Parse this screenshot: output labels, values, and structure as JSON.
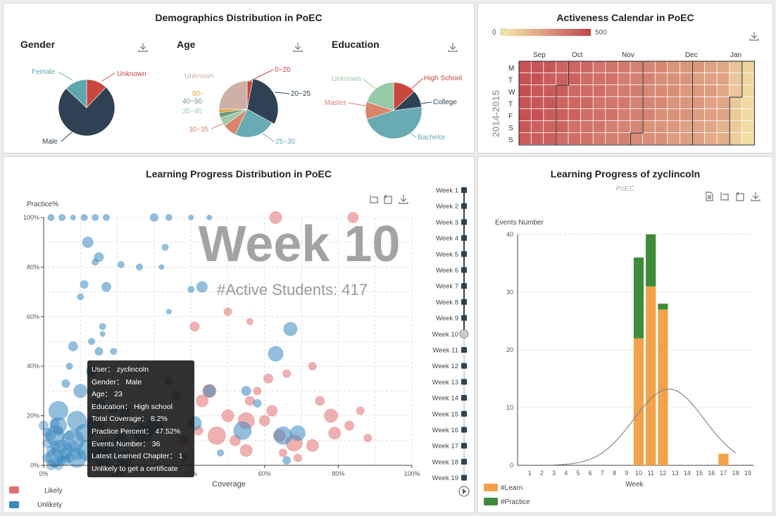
{
  "demographics": {
    "title": "Demographics Distribution in PoEC",
    "gender": {
      "title": "Gender",
      "labels": [
        "Female",
        "Unknown",
        "Male"
      ]
    },
    "age": {
      "title": "Age",
      "labels": [
        "Unknown",
        "0~20",
        "20~25",
        "50~",
        "40~50",
        "35~40",
        "30~35",
        "25~30"
      ]
    },
    "education": {
      "title": "Education",
      "labels": [
        "Unknown",
        "High School",
        "College",
        "Master",
        "Bachelor"
      ]
    }
  },
  "calendar": {
    "title": "Activeness Calendar in PoEC",
    "scale_min": "0",
    "scale_max": "500",
    "months": [
      "Sep",
      "Oct",
      "Nov",
      "Dec",
      "Jan"
    ],
    "days": [
      "M",
      "T",
      "W",
      "T",
      "F",
      "S",
      "S"
    ],
    "year_label": "2014-2015"
  },
  "progress": {
    "title": "Learning Progress Distribution in PoEC",
    "big_label": "Week 10",
    "active_label": "#Active Students: 417",
    "legend": [
      "Likely",
      "Unlikely"
    ],
    "weeks": [
      "Week 1",
      "Week 2",
      "Week 3",
      "Week 4",
      "Week 5",
      "Week 6",
      "Week 7",
      "Week 8",
      "Week 9",
      "Week 10",
      "Week 11",
      "Week 12",
      "Week 13",
      "Week 14",
      "Week 15",
      "Week 16",
      "Week 17",
      "Week 18",
      "Week 19"
    ],
    "tooltip": [
      "User： zyclincoln",
      "Gender： Male",
      "Age： 23",
      "Education： High school",
      "Total Coverage： 8.2%",
      "Practice Percent： 47.52%",
      "Events Number： 36",
      "Latest Learned Chapter： 1",
      "Unlikely to get a certificate"
    ]
  },
  "user": {
    "title": "Learning Progress of zyclincoln",
    "subtitle": "PoEC"
  },
  "chart_data": [
    {
      "type": "pie",
      "title": "Gender",
      "slices": [
        {
          "label": "Unknown",
          "value": 12,
          "color": "#c9473e"
        },
        {
          "label": "Male",
          "value": 75,
          "color": "#2e4253"
        },
        {
          "label": "Female",
          "value": 13,
          "color": "#5ea6ae"
        }
      ]
    },
    {
      "type": "pie",
      "title": "Age",
      "slices": [
        {
          "label": "0~20",
          "value": 3,
          "color": "#c9473e"
        },
        {
          "label": "20~25",
          "value": 30,
          "color": "#2e4253"
        },
        {
          "label": "25~30",
          "value": 24,
          "color": "#6aaab2"
        },
        {
          "label": "30~35",
          "value": 8,
          "color": "#d8866a"
        },
        {
          "label": "35~40",
          "value": 5,
          "color": "#9ccaa8"
        },
        {
          "label": "40~50",
          "value": 3,
          "color": "#6e9a7a"
        },
        {
          "label": "50~",
          "value": 2,
          "color": "#e0a53a"
        },
        {
          "label": "Unknown",
          "value": 25,
          "color": "#cdb1a6"
        }
      ]
    },
    {
      "type": "pie",
      "title": "Education",
      "slices": [
        {
          "label": "High School",
          "value": 13,
          "color": "#c9473e"
        },
        {
          "label": "College",
          "value": 10,
          "color": "#2e4253"
        },
        {
          "label": "Bachelor",
          "value": 47,
          "color": "#6aaab2"
        },
        {
          "label": "Master",
          "value": 10,
          "color": "#d8866a"
        },
        {
          "label": "Unknown",
          "value": 20,
          "color": "#96c9a6"
        }
      ]
    },
    {
      "type": "scatter",
      "title": "Learning Progress Distribution in PoEC",
      "xlabel": "Coverage",
      "ylabel": "Practice%",
      "xlim": [
        0,
        100
      ],
      "ylim": [
        0,
        100
      ],
      "xticks": [
        "0%",
        "20%",
        "40%",
        "60%",
        "80%",
        "100%"
      ],
      "yticks": [
        "0%",
        "20%",
        "40%",
        "60%",
        "80%",
        "100%"
      ],
      "series": [
        {
          "name": "Likely",
          "color": "#e07070",
          "points": [
            [
              63,
              100,
              9
            ],
            [
              84,
              100,
              8
            ],
            [
              50,
              62,
              6
            ],
            [
              56,
              58,
              5
            ],
            [
              41,
              56,
              7
            ],
            [
              50,
              20,
              9
            ],
            [
              55,
              18,
              12
            ],
            [
              62,
              22,
              8
            ],
            [
              45,
              30,
              10
            ],
            [
              43,
              26,
              9
            ],
            [
              56,
              26,
              7
            ],
            [
              64,
              12,
              9
            ],
            [
              68,
              9,
              12
            ],
            [
              79,
              13,
              9
            ],
            [
              83,
              16,
              7
            ],
            [
              78,
              20,
              10
            ],
            [
              73,
              8,
              9
            ],
            [
              60,
              18,
              8
            ],
            [
              65,
              5,
              6
            ],
            [
              55,
              6,
              9
            ],
            [
              47,
              12,
              13
            ],
            [
              52,
              10,
              8
            ],
            [
              69,
              3,
              6
            ],
            [
              75,
              26,
              7
            ],
            [
              86,
              22,
              6
            ],
            [
              88,
              11,
              6
            ],
            [
              38,
              10,
              8
            ],
            [
              42,
              14,
              7
            ],
            [
              58,
              30,
              6
            ],
            [
              61,
              35,
              7
            ],
            [
              66,
              37,
              6
            ],
            [
              73,
              40,
              6
            ]
          ]
        },
        {
          "name": "Unlikely",
          "color": "#3a89c0",
          "points": [
            [
              2,
              100,
              5
            ],
            [
              5,
              100,
              5
            ],
            [
              8,
              100,
              4
            ],
            [
              11,
              100,
              5
            ],
            [
              14,
              100,
              5
            ],
            [
              17,
              100,
              5
            ],
            [
              30,
              100,
              6
            ],
            [
              34,
              100,
              5
            ],
            [
              40,
              100,
              4
            ],
            [
              45,
              100,
              4
            ],
            [
              12,
              90,
              8
            ],
            [
              15,
              84,
              7
            ],
            [
              14,
              82,
              5
            ],
            [
              21,
              81,
              5
            ],
            [
              11,
              73,
              6
            ],
            [
              17,
              72,
              7
            ],
            [
              10,
              68,
              5
            ],
            [
              26,
              80,
              5
            ],
            [
              32,
              80,
              4
            ],
            [
              33,
              88,
              5
            ],
            [
              43,
              72,
              8
            ],
            [
              40,
              71,
              5
            ],
            [
              34,
              62,
              4
            ],
            [
              16,
              56,
              5
            ],
            [
              16,
              53,
              4
            ],
            [
              13,
              50,
              5
            ],
            [
              8,
              48,
              7
            ],
            [
              15,
              46,
              6
            ],
            [
              19,
              46,
              5
            ],
            [
              67,
              55,
              10
            ],
            [
              63,
              45,
              11
            ],
            [
              55,
              30,
              7
            ],
            [
              45,
              30,
              9
            ],
            [
              36,
              28,
              7
            ],
            [
              34,
              34,
              6
            ],
            [
              58,
              25,
              6
            ],
            [
              30,
              16,
              12
            ],
            [
              27,
              13,
              14
            ],
            [
              21,
              10,
              10
            ],
            [
              19,
              23,
              8
            ],
            [
              15,
              24,
              9
            ],
            [
              10,
              30,
              10
            ],
            [
              6,
              33,
              6
            ],
            [
              7,
              40,
              5
            ],
            [
              13,
              38,
              8
            ],
            [
              4,
              22,
              14
            ],
            [
              9,
              18,
              14
            ],
            [
              14,
              17,
              13
            ],
            [
              22,
              21,
              8
            ],
            [
              8,
              10,
              16
            ],
            [
              3,
              12,
              14
            ],
            [
              5,
              6,
              15
            ],
            [
              12,
              6,
              15
            ],
            [
              17,
              7,
              13
            ],
            [
              3,
              3,
              13
            ],
            [
              9,
              3,
              14
            ],
            [
              16,
              3,
              12
            ],
            [
              22,
              3,
              11
            ],
            [
              4,
              16,
              12
            ],
            [
              11,
              13,
              13
            ],
            [
              41,
              17,
              10
            ],
            [
              54,
              14,
              13
            ],
            [
              69,
              13,
              11
            ],
            [
              65,
              12,
              13
            ],
            [
              66,
              2,
              6
            ],
            [
              38,
              3,
              6
            ],
            [
              48,
              5,
              5
            ]
          ]
        }
      ]
    },
    {
      "type": "bar",
      "title": "Learning Progress of zyclincoln",
      "subtitle": "PoEC",
      "ylabel": "Events Number",
      "xlabel": "Week",
      "categories": [
        1,
        2,
        3,
        4,
        5,
        6,
        7,
        8,
        9,
        10,
        11,
        12,
        13,
        14,
        15,
        16,
        17,
        18,
        19
      ],
      "ylim": [
        0,
        40
      ],
      "yticks": [
        0,
        10,
        20,
        30,
        40
      ],
      "stacked": true,
      "series": [
        {
          "name": "#Learn",
          "color": "#f2a24a",
          "values": [
            0,
            0,
            0,
            0,
            0,
            0,
            0,
            0,
            0,
            22,
            31,
            27,
            0,
            0,
            0,
            0,
            2,
            0,
            0
          ]
        },
        {
          "name": "#Practice",
          "color": "#3e8c3a",
          "values": [
            0,
            0,
            0,
            0,
            0,
            0,
            0,
            0,
            0,
            14,
            9,
            1,
            0,
            0,
            0,
            0,
            0,
            0,
            0
          ]
        }
      ],
      "curve": {
        "type": "normal",
        "peak_x": 12.5,
        "peak_y": 13.2,
        "from_x": 3,
        "to_x": 18
      }
    }
  ]
}
